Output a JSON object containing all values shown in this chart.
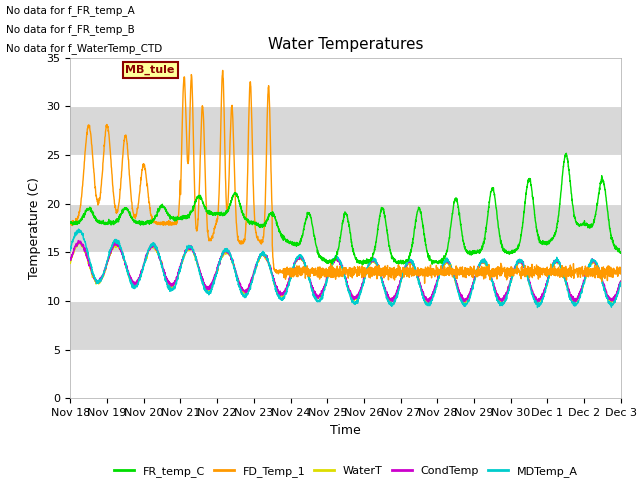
{
  "title": "Water Temperatures",
  "ylabel": "Temperature (C)",
  "xlabel": "Time",
  "ylim": [
    0,
    35
  ],
  "no_data_messages": [
    "No data for f_FR_temp_A",
    "No data for f_FR_temp_B",
    "No data for f_WaterTemp_CTD"
  ],
  "mb_tule_label": "MB_tule",
  "xtick_labels": [
    "Nov 18",
    "Nov 19",
    "Nov 20",
    "Nov 21",
    "Nov 22",
    "Nov 23",
    "Nov 24",
    "Nov 25",
    "Nov 26",
    "Nov 27",
    "Nov 28",
    "Nov 29",
    "Nov 30",
    "Dec 1",
    "Dec 2",
    "Dec 3"
  ],
  "colors": {
    "FR_temp_C": "#00dd00",
    "FD_Temp_1": "#ff9900",
    "WaterT": "#dddd00",
    "CondTemp": "#cc00cc",
    "MDTemp_A": "#00cccc"
  }
}
